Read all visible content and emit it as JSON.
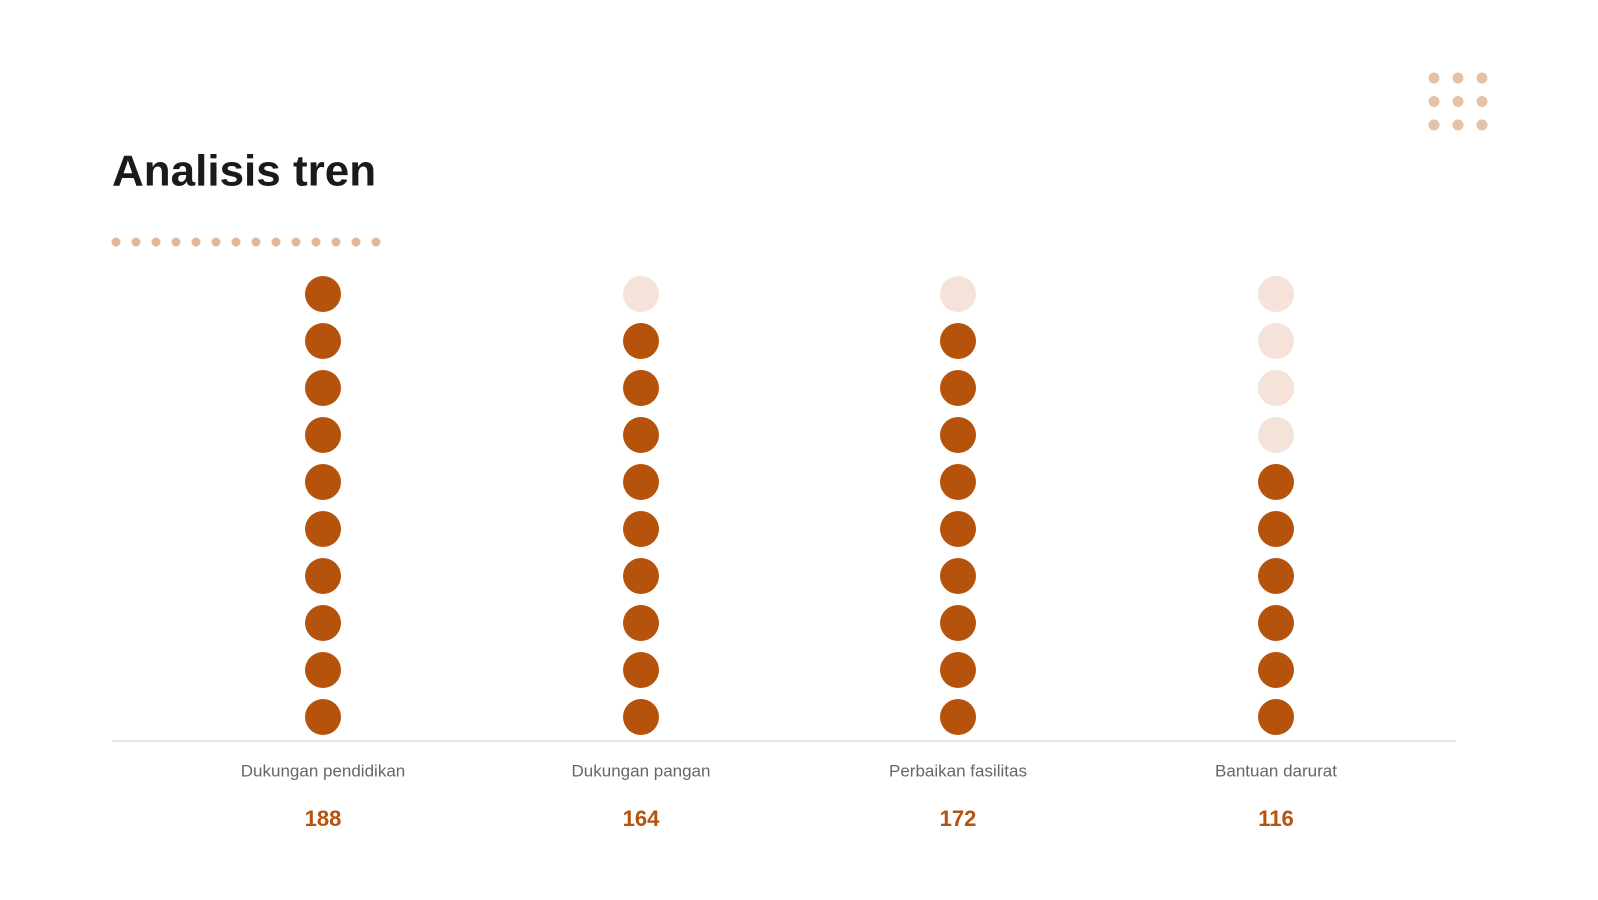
{
  "chart_data": {
    "type": "pictogram",
    "title": "Analisis tren",
    "categories": [
      "Dukungan pendidikan",
      "Dukungan pangan",
      "Perbaikan fasilitas",
      "Bantuan darurat"
    ],
    "values": [
      188,
      164,
      172,
      116
    ],
    "color": "#b5520b"
  }
}
